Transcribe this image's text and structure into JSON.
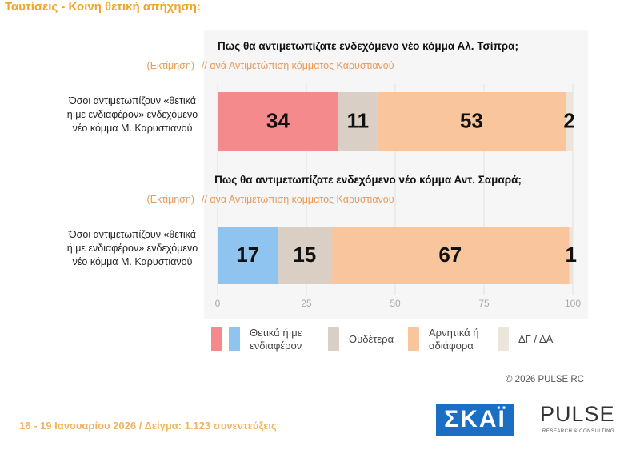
{
  "page_title": "Ταυτίσεις  -  Κοινή θετική απήχηση:",
  "chart_data": [
    {
      "type": "bar",
      "orientation": "horizontal",
      "stacked": true,
      "title": "Πως θα αντιμετωπίζατε ενδεχόμενο νέο κόμμα Αλ. Τσίπρα;",
      "note": "(Εκτίμηση)",
      "subtitle": "// ανά Αντιμετώπιση κόμματος Καρυστιανού",
      "categories": [
        "Όσοι αντιμετωπίζουν «θετικά ή με ενδιαφέρον» ενδεχόμενο νέο κόμμα Μ. Καρυστιανού"
      ],
      "series": [
        {
          "name": "Θετικά ή με ενδιαφέρον",
          "color": "#f48a8b",
          "values": [
            34
          ]
        },
        {
          "name": "Ουδέτερα",
          "color": "#d9cfc5",
          "values": [
            11
          ]
        },
        {
          "name": "Αρνητικά ή αδιάφορα",
          "color": "#f8c59d",
          "values": [
            53
          ]
        },
        {
          "name": "ΔΓ / ΔΑ",
          "color": "#ece5dc",
          "values": [
            2
          ]
        }
      ],
      "xlim": [
        0,
        100
      ]
    },
    {
      "type": "bar",
      "orientation": "horizontal",
      "stacked": true,
      "title": "Πως θα αντιμετωπίζατε ενδεχόμενο νέο κόμμα Αντ. Σαμαρά;",
      "note": "(Εκτίμηση)",
      "subtitle": "// ανα Αντιμετωπιση κομματος Καρυστιανου",
      "categories": [
        "Όσοι αντιμετωπίζουν «θετικά ή με ενδιαφέρον» ενδεχόμενο νέο κόμμα Μ. Καρυστιανού"
      ],
      "series": [
        {
          "name": "Θετικά ή με ενδιαφέρον",
          "color": "#8ec4ef",
          "values": [
            17
          ]
        },
        {
          "name": "Ουδέτερα",
          "color": "#d9cfc5",
          "values": [
            15
          ]
        },
        {
          "name": "Αρνητικά ή αδιάφορα",
          "color": "#f8c59d",
          "values": [
            67
          ]
        },
        {
          "name": "ΔΓ / ΔΑ",
          "color": "#ece5dc",
          "values": [
            1
          ]
        }
      ],
      "xlim": [
        0,
        100
      ],
      "xticks": [
        0,
        25,
        50,
        75,
        100
      ],
      "grid": true
    }
  ],
  "footer": "16 - 19 Ιανουαρίου 2026  /  Δείγμα:  1.123 συνεντεύξεις",
  "copyright": "©  2026  PULSE RC",
  "logo_skai": "ΣΚΑΪ",
  "logo_pulse": "PULSE",
  "logo_pulse_sub": "RESEARCH & CONSULTING"
}
